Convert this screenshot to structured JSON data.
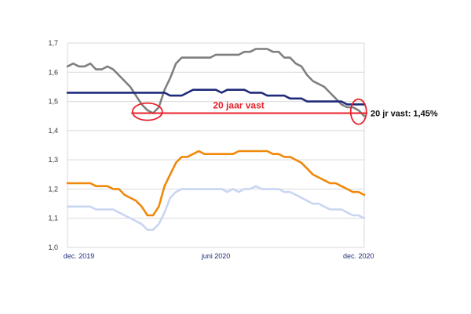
{
  "chart_data": {
    "type": "line",
    "title": "",
    "xlabel": "",
    "ylabel": "",
    "ylim": [
      1.0,
      1.7
    ],
    "xlim": [
      0,
      52
    ],
    "grid": true,
    "y_ticks": [
      "1,0",
      "1,1",
      "1,2",
      "1,3",
      "1,4",
      "1,5",
      "1,6",
      "1,7"
    ],
    "y_tick_values": [
      1.0,
      1.1,
      1.2,
      1.3,
      1.4,
      1.5,
      1.6,
      1.7
    ],
    "x_ticks": [
      {
        "label": "dec. 2019",
        "x": 2
      },
      {
        "label": "juni 2020",
        "x": 26
      },
      {
        "label": "dec. 2020",
        "x": 51
      }
    ],
    "series": [
      {
        "name": "gray",
        "color": "#7f7f7f",
        "x": [
          0,
          1,
          2,
          3,
          4,
          5,
          6,
          7,
          8,
          9,
          10,
          11,
          12,
          13,
          14,
          15,
          16,
          17,
          18,
          19,
          20,
          21,
          22,
          23,
          24,
          25,
          26,
          27,
          28,
          29,
          30,
          31,
          32,
          33,
          34,
          35,
          36,
          37,
          38,
          39,
          40,
          41,
          42,
          43,
          44,
          45,
          46,
          47,
          48,
          49,
          50,
          51,
          52
        ],
        "values": [
          1.62,
          1.63,
          1.62,
          1.62,
          1.63,
          1.61,
          1.61,
          1.62,
          1.61,
          1.59,
          1.57,
          1.55,
          1.52,
          1.49,
          1.47,
          1.46,
          1.48,
          1.54,
          1.58,
          1.63,
          1.65,
          1.65,
          1.65,
          1.65,
          1.65,
          1.65,
          1.66,
          1.66,
          1.66,
          1.66,
          1.66,
          1.67,
          1.67,
          1.68,
          1.68,
          1.68,
          1.67,
          1.67,
          1.65,
          1.65,
          1.63,
          1.62,
          1.59,
          1.57,
          1.56,
          1.55,
          1.53,
          1.51,
          1.49,
          1.48,
          1.48,
          1.47,
          1.45
        ]
      },
      {
        "name": "dark blue",
        "color": "#1f2a7a",
        "x": [
          0,
          17,
          18,
          20,
          21,
          22,
          23,
          24,
          25,
          26,
          27,
          28,
          29,
          30,
          31,
          32,
          33,
          34,
          35,
          36,
          37,
          38,
          39,
          40,
          41,
          42,
          43,
          44,
          45,
          46,
          47,
          48,
          49,
          50,
          51,
          52
        ],
        "values": [
          1.53,
          1.53,
          1.52,
          1.52,
          1.53,
          1.54,
          1.54,
          1.54,
          1.54,
          1.54,
          1.53,
          1.54,
          1.54,
          1.54,
          1.54,
          1.53,
          1.53,
          1.53,
          1.52,
          1.52,
          1.52,
          1.52,
          1.51,
          1.51,
          1.51,
          1.5,
          1.5,
          1.5,
          1.5,
          1.5,
          1.5,
          1.5,
          1.49,
          1.49,
          1.49,
          1.49
        ]
      },
      {
        "name": "orange",
        "color": "#f0880a",
        "x": [
          0,
          4,
          5,
          6,
          7,
          8,
          9,
          10,
          11,
          12,
          13,
          14,
          15,
          16,
          17,
          18,
          19,
          20,
          21,
          22,
          23,
          24,
          25,
          26,
          27,
          28,
          29,
          30,
          31,
          32,
          33,
          34,
          35,
          36,
          37,
          38,
          39,
          40,
          41,
          42,
          43,
          44,
          45,
          46,
          47,
          48,
          49,
          50,
          51,
          52
        ],
        "values": [
          1.22,
          1.22,
          1.21,
          1.21,
          1.21,
          1.2,
          1.2,
          1.18,
          1.17,
          1.16,
          1.14,
          1.11,
          1.11,
          1.14,
          1.21,
          1.25,
          1.29,
          1.31,
          1.31,
          1.32,
          1.33,
          1.32,
          1.32,
          1.32,
          1.32,
          1.32,
          1.32,
          1.33,
          1.33,
          1.33,
          1.33,
          1.33,
          1.33,
          1.32,
          1.32,
          1.31,
          1.31,
          1.3,
          1.29,
          1.27,
          1.25,
          1.24,
          1.23,
          1.22,
          1.22,
          1.21,
          1.2,
          1.19,
          1.19,
          1.18
        ]
      },
      {
        "name": "light blue",
        "color": "#c9d6f2",
        "x": [
          0,
          3,
          4,
          5,
          6,
          7,
          8,
          9,
          10,
          11,
          12,
          13,
          14,
          15,
          16,
          17,
          18,
          19,
          20,
          21,
          22,
          23,
          24,
          25,
          26,
          27,
          28,
          29,
          30,
          31,
          32,
          33,
          34,
          35,
          36,
          37,
          38,
          39,
          40,
          41,
          42,
          43,
          44,
          45,
          46,
          47,
          48,
          49,
          50,
          51,
          52
        ],
        "values": [
          1.14,
          1.14,
          1.14,
          1.13,
          1.13,
          1.13,
          1.13,
          1.12,
          1.11,
          1.1,
          1.09,
          1.08,
          1.06,
          1.06,
          1.08,
          1.12,
          1.17,
          1.19,
          1.2,
          1.2,
          1.2,
          1.2,
          1.2,
          1.2,
          1.2,
          1.2,
          1.19,
          1.2,
          1.19,
          1.2,
          1.2,
          1.21,
          1.2,
          1.2,
          1.2,
          1.2,
          1.19,
          1.19,
          1.18,
          1.17,
          1.16,
          1.15,
          1.15,
          1.14,
          1.13,
          1.13,
          1.13,
          1.12,
          1.11,
          1.11,
          1.1
        ]
      }
    ],
    "reference_line": {
      "label": "20 jaar vast",
      "value": 1.46,
      "x_start": 12,
      "x_end": 52,
      "color": "#e8202a"
    },
    "highlights": [
      {
        "x": 14,
        "value": 1.465
      },
      {
        "x": 51,
        "value": 1.465
      }
    ],
    "annotation": {
      "label": "20 jr vast: 1,45%"
    }
  }
}
